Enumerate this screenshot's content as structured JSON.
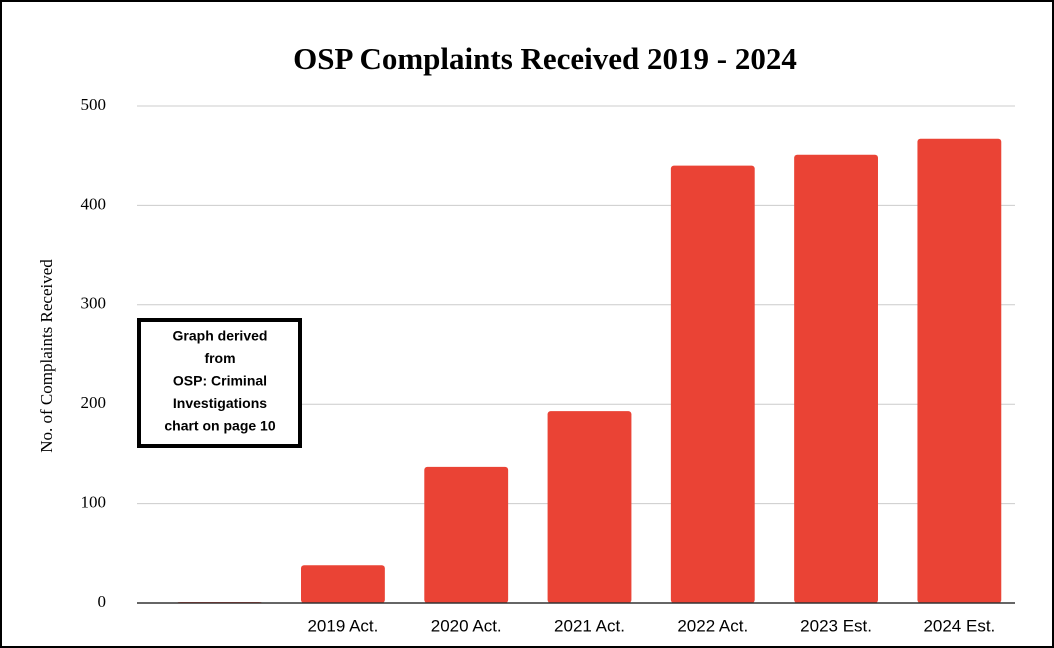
{
  "chart_data": {
    "type": "bar",
    "title": "OSP Complaints Received 2019 - 2024",
    "y_label": "No. of Complaints Received",
    "annotation": [
      "Graph derived",
      "from",
      "OSP: Criminal",
      "Investigations",
      "chart on page 10"
    ],
    "categories": [
      null,
      "2019 Act.",
      "2020 Act.",
      "2021 Act.",
      "2022 Act.",
      "2023 Est.",
      "2024 Est."
    ],
    "values": [
      1,
      38,
      137,
      193,
      440,
      451,
      467
    ],
    "color": "#ea4335",
    "ylim": [
      0,
      500
    ],
    "yticks": [
      0,
      100,
      200,
      300,
      400,
      500
    ],
    "grid": true
  }
}
